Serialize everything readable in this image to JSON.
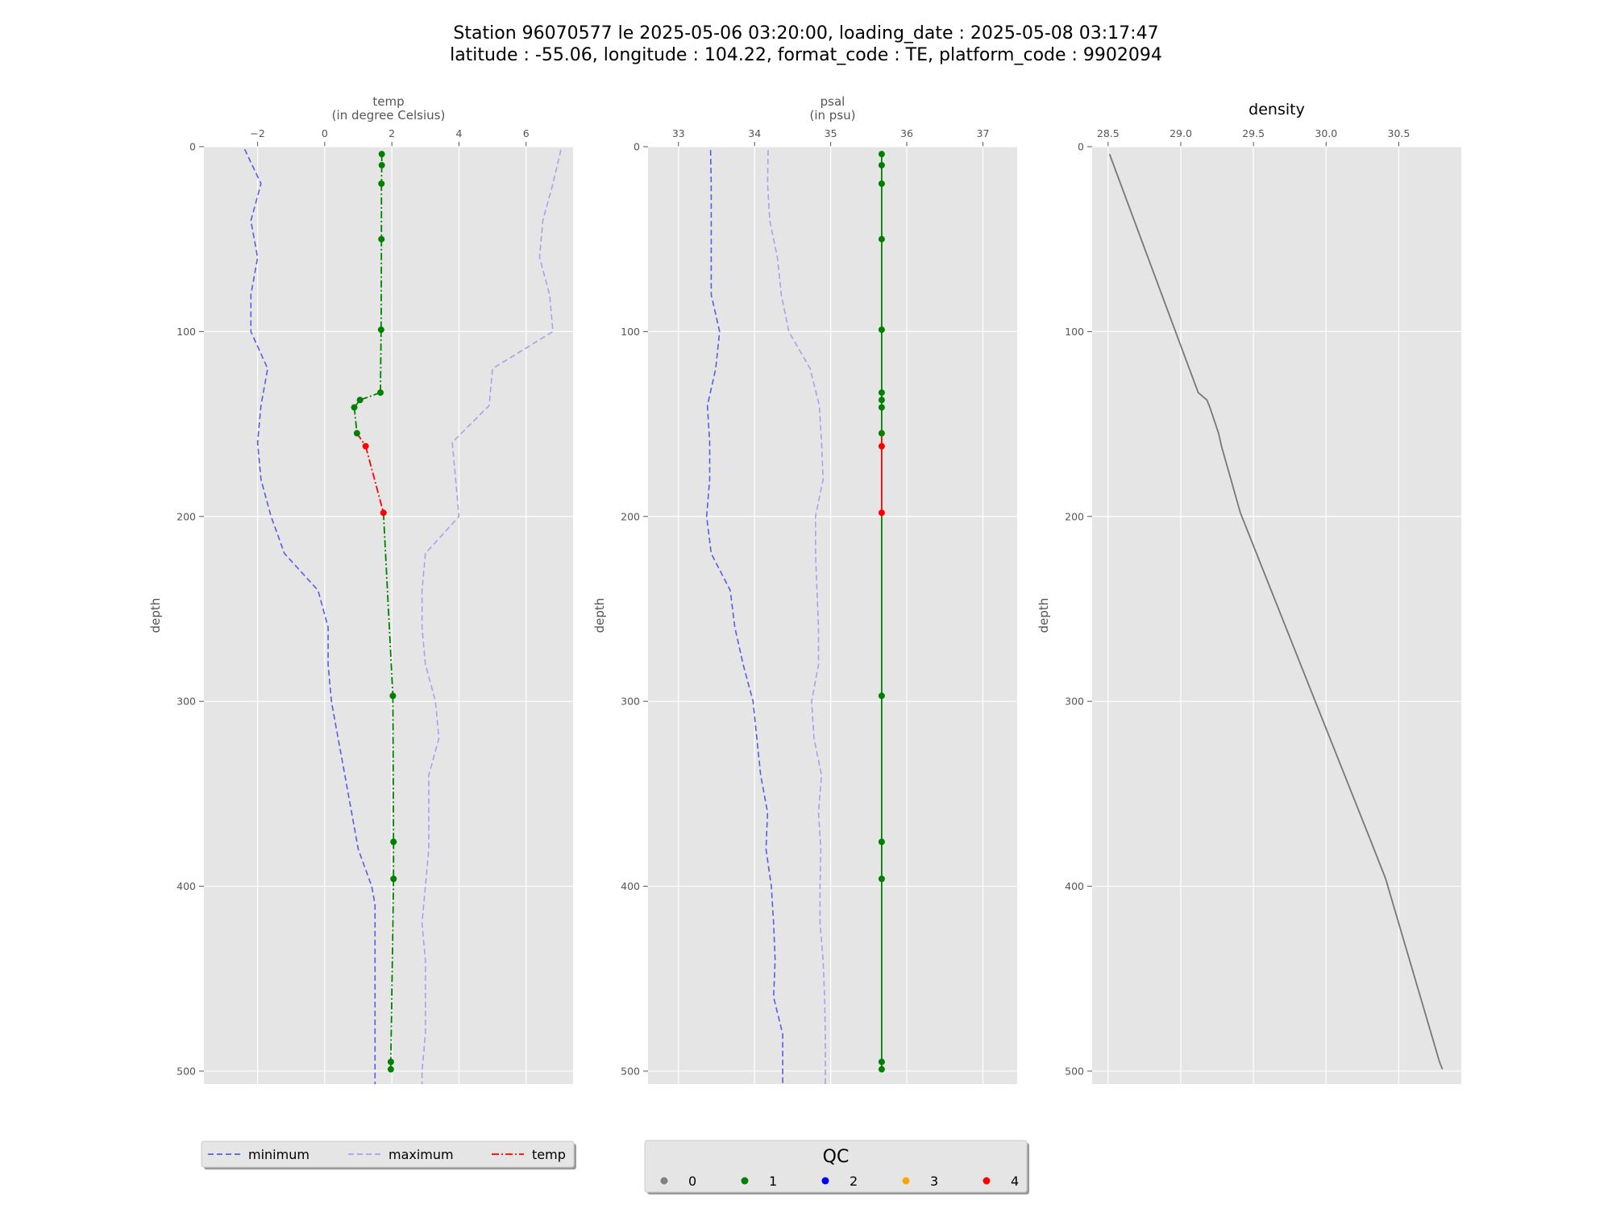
{
  "figure": {
    "title_line1": "Station 96070577 le 2025-05-06 03:20:00, loading_date : 2025-05-08 03:17:47",
    "title_line2": "latitude : -55.06, longitude : 104.22, format_code : TE, platform_code : 9902094"
  },
  "colors": {
    "background": "#e5e5e5",
    "grid": "#ffffff",
    "minimum": "#5b5bea",
    "maximum": "#a3a3ee",
    "qc": {
      "0": "#808080",
      "1": "#008000",
      "2": "#0000ff",
      "3": "#ffa500",
      "4": "#ff0000"
    },
    "density": "#777777"
  },
  "legend_main": {
    "entries": [
      {
        "label": "minimum",
        "style": "dashed",
        "color": "#5b5bea"
      },
      {
        "label": "maximum",
        "style": "dashed",
        "color": "#a3a3ee"
      },
      {
        "label": "temp",
        "style": "dashdot",
        "color": "#ff0000"
      }
    ]
  },
  "legend_qc": {
    "title": "QC",
    "entries": [
      {
        "label": "0",
        "color": "#808080"
      },
      {
        "label": "1",
        "color": "#008000"
      },
      {
        "label": "2",
        "color": "#0000ff"
      },
      {
        "label": "3",
        "color": "#ffa500"
      },
      {
        "label": "4",
        "color": "#ff0000"
      }
    ]
  },
  "chart_data": [
    {
      "type": "line",
      "panel": "temp",
      "title": "",
      "xlabel_line1": "temp",
      "xlabel_line2": "(in degree Celsius)",
      "ylabel": "depth",
      "xlim": [
        -3.6,
        7.4
      ],
      "ylim": [
        507,
        0
      ],
      "xticks": [
        -2,
        0,
        2,
        4,
        6
      ],
      "xtick_labels": [
        "−2",
        "0",
        "2",
        "4",
        "6"
      ],
      "yticks": [
        0,
        100,
        200,
        300,
        400,
        500
      ],
      "ytick_labels": [
        "0",
        "100",
        "200",
        "300",
        "400",
        "500"
      ],
      "grid": true,
      "minimum": {
        "depth": [
          -3,
          20,
          40,
          60,
          80,
          100,
          120,
          140,
          160,
          180,
          200,
          210,
          220,
          240,
          260,
          280,
          300,
          320,
          340,
          360,
          380,
          400,
          410,
          420,
          440,
          460,
          480,
          500,
          510
        ],
        "value": [
          -2.5,
          -1.9,
          -2.2,
          -2.0,
          -2.2,
          -2.2,
          -1.7,
          -1.9,
          -2.0,
          -1.9,
          -1.6,
          -1.4,
          -1.2,
          -0.2,
          0.1,
          0.1,
          0.2,
          0.4,
          0.6,
          0.8,
          1.0,
          1.4,
          1.5,
          1.5,
          1.5,
          1.5,
          1.5,
          1.5,
          1.5
        ]
      },
      "maximum": {
        "depth": [
          -3,
          20,
          40,
          60,
          80,
          100,
          120,
          140,
          160,
          180,
          200,
          220,
          240,
          260,
          280,
          300,
          320,
          340,
          360,
          380,
          400,
          420,
          440,
          460,
          480,
          500,
          510
        ],
        "value": [
          7.1,
          6.8,
          6.5,
          6.4,
          6.7,
          6.8,
          5.0,
          4.9,
          3.8,
          3.9,
          4.0,
          3.0,
          2.9,
          2.9,
          3.0,
          3.3,
          3.4,
          3.1,
          3.1,
          3.1,
          3.0,
          2.9,
          3.0,
          3.0,
          3.0,
          2.9,
          2.9
        ]
      },
      "profile": {
        "points": [
          {
            "depth": 4,
            "value": 1.7,
            "qc": 1
          },
          {
            "depth": 10,
            "value": 1.7,
            "qc": 1
          },
          {
            "depth": 20,
            "value": 1.69,
            "qc": 1
          },
          {
            "depth": 50,
            "value": 1.69,
            "qc": 1
          },
          {
            "depth": 99,
            "value": 1.68,
            "qc": 1
          },
          {
            "depth": 133,
            "value": 1.66,
            "qc": 1
          },
          {
            "depth": 137,
            "value": 1.05,
            "qc": 1
          },
          {
            "depth": 141,
            "value": 0.88,
            "qc": 1
          },
          {
            "depth": 155,
            "value": 0.96,
            "qc": 1
          },
          {
            "depth": 162,
            "value": 1.22,
            "qc": 4
          },
          {
            "depth": 198,
            "value": 1.75,
            "qc": 4
          },
          {
            "depth": 297,
            "value": 2.03,
            "qc": 1
          },
          {
            "depth": 376,
            "value": 2.05,
            "qc": 1
          },
          {
            "depth": 396,
            "value": 2.05,
            "qc": 1
          },
          {
            "depth": 495,
            "value": 1.97,
            "qc": 1
          },
          {
            "depth": 499,
            "value": 1.97,
            "qc": 1
          }
        ]
      }
    },
    {
      "type": "line",
      "panel": "psal",
      "title": "",
      "xlabel_line1": "psal",
      "xlabel_line2": "(in psu)",
      "ylabel": "depth",
      "xlim": [
        32.6,
        37.45
      ],
      "ylim": [
        507,
        0
      ],
      "xticks": [
        33,
        34,
        35,
        36,
        37
      ],
      "xtick_labels": [
        "33",
        "34",
        "35",
        "36",
        "37"
      ],
      "yticks": [
        0,
        100,
        200,
        300,
        400,
        500
      ],
      "ytick_labels": [
        "0",
        "100",
        "200",
        "300",
        "400",
        "500"
      ],
      "grid": true,
      "minimum": {
        "depth": [
          -3,
          20,
          40,
          60,
          80,
          100,
          120,
          140,
          160,
          180,
          200,
          220,
          240,
          260,
          280,
          300,
          320,
          340,
          360,
          380,
          400,
          420,
          440,
          460,
          480,
          500,
          510
        ],
        "value": [
          33.42,
          33.43,
          33.43,
          33.43,
          33.43,
          33.54,
          33.49,
          33.38,
          33.41,
          33.41,
          33.37,
          33.43,
          33.68,
          33.74,
          33.85,
          33.98,
          34.03,
          34.08,
          34.17,
          34.15,
          34.22,
          34.25,
          34.27,
          34.25,
          34.37,
          34.37,
          34.37
        ]
      },
      "maximum": {
        "depth": [
          -3,
          20,
          40,
          60,
          80,
          100,
          120,
          140,
          160,
          180,
          200,
          220,
          240,
          260,
          280,
          300,
          320,
          340,
          360,
          380,
          400,
          420,
          440,
          460,
          480,
          500,
          510
        ],
        "value": [
          34.18,
          34.17,
          34.2,
          34.3,
          34.35,
          34.45,
          34.73,
          34.85,
          34.88,
          34.9,
          34.8,
          34.8,
          34.82,
          34.84,
          34.84,
          34.75,
          34.78,
          34.88,
          34.84,
          34.87,
          34.86,
          34.86,
          34.9,
          34.92,
          34.93,
          34.93,
          34.93
        ]
      },
      "profile": {
        "points": [
          {
            "depth": 4,
            "value": 35.67,
            "qc": 1
          },
          {
            "depth": 10,
            "value": 35.67,
            "qc": 1
          },
          {
            "depth": 20,
            "value": 35.67,
            "qc": 1
          },
          {
            "depth": 50,
            "value": 35.67,
            "qc": 1
          },
          {
            "depth": 99,
            "value": 35.67,
            "qc": 1
          },
          {
            "depth": 133,
            "value": 35.67,
            "qc": 1
          },
          {
            "depth": 137,
            "value": 35.67,
            "qc": 1
          },
          {
            "depth": 141,
            "value": 35.67,
            "qc": 1
          },
          {
            "depth": 155,
            "value": 35.67,
            "qc": 1
          },
          {
            "depth": 162,
            "value": 35.67,
            "qc": 4
          },
          {
            "depth": 198,
            "value": 35.67,
            "qc": 4
          },
          {
            "depth": 297,
            "value": 35.67,
            "qc": 1
          },
          {
            "depth": 376,
            "value": 35.67,
            "qc": 1
          },
          {
            "depth": 396,
            "value": 35.67,
            "qc": 1
          },
          {
            "depth": 495,
            "value": 35.67,
            "qc": 1
          },
          {
            "depth": 499,
            "value": 35.67,
            "qc": 1
          }
        ]
      }
    },
    {
      "type": "line",
      "panel": "density",
      "title": "density",
      "xlabel_line1": "",
      "xlabel_line2": "",
      "ylabel": "depth",
      "xlim": [
        28.39,
        30.93
      ],
      "ylim": [
        507,
        0
      ],
      "xticks": [
        28.5,
        29.0,
        29.5,
        30.0,
        30.5
      ],
      "xtick_labels": [
        "28.5",
        "29.0",
        "29.5",
        "30.0",
        "30.5"
      ],
      "yticks": [
        0,
        100,
        200,
        300,
        400,
        500
      ],
      "ytick_labels": [
        "0",
        "100",
        "200",
        "300",
        "400",
        "500"
      ],
      "grid": true,
      "series": {
        "depth": [
          4,
          133,
          137,
          141,
          155,
          162,
          198,
          297,
          376,
          396,
          495,
          499
        ],
        "value": [
          28.51,
          29.12,
          29.18,
          29.2,
          29.26,
          29.28,
          29.41,
          29.91,
          30.31,
          30.41,
          30.78,
          30.8
        ]
      }
    }
  ]
}
